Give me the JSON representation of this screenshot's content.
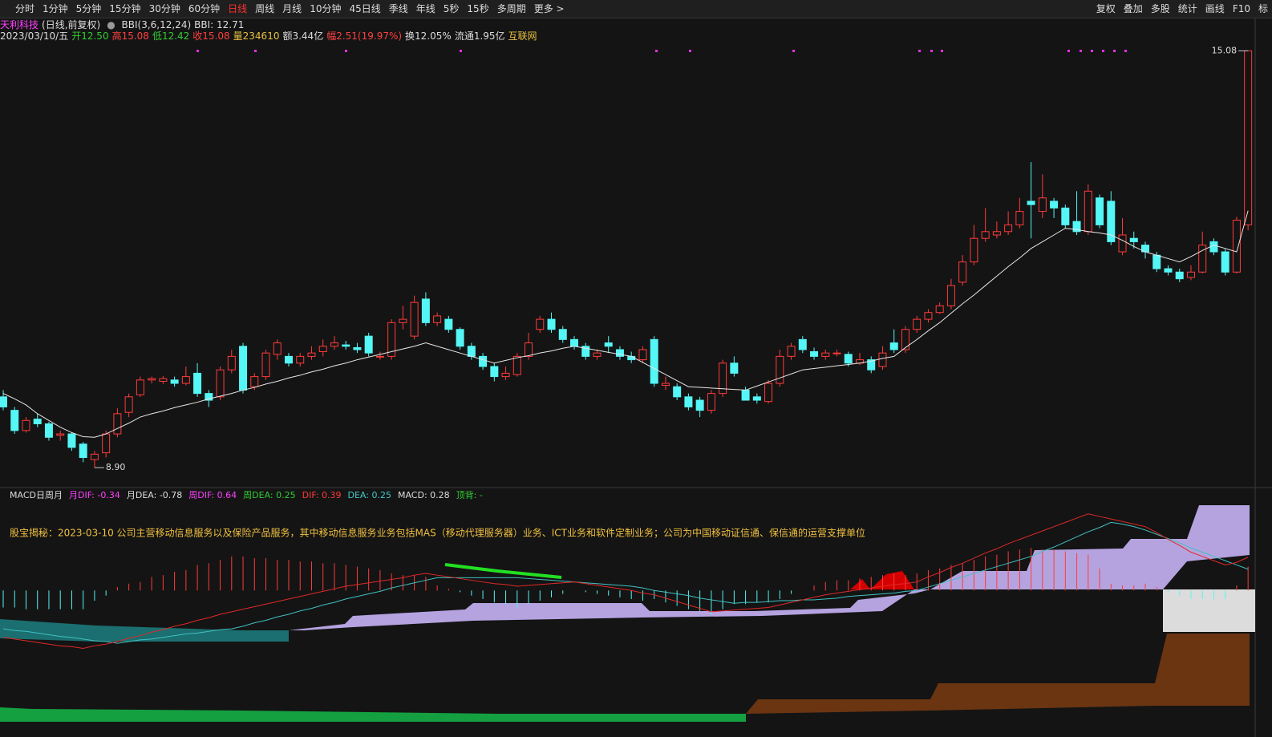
{
  "toolbar": {
    "left": [
      "分时",
      "1分钟",
      "5分钟",
      "15分钟",
      "30分钟",
      "60分钟",
      "日线",
      "周线",
      "月线",
      "10分钟",
      "45日线",
      "季线",
      "年线",
      "5秒",
      "15秒",
      "多周期",
      "更多 >"
    ],
    "active_index": 6,
    "right": [
      "复权",
      "叠加",
      "多股",
      "统计",
      "画线",
      "F10",
      "标"
    ]
  },
  "info": [
    {
      "text": "2023/03/10/五",
      "color": "#dddddd"
    },
    {
      "text": "开12.50",
      "color": "#33cc33"
    },
    {
      "text": "高15.08",
      "color": "#ff4040"
    },
    {
      "text": "低12.42",
      "color": "#33cc33"
    },
    {
      "text": "收15.08",
      "color": "#ff4040"
    },
    {
      "text": "量234610",
      "color": "#e8c040"
    },
    {
      "text": "额3.44亿",
      "color": "#dddddd"
    },
    {
      "text": "幅2.51(19.97%)",
      "color": "#ff4040"
    },
    {
      "text": "换12.05%",
      "color": "#dddddd"
    },
    {
      "text": "流通1.95亿",
      "color": "#dddddd"
    },
    {
      "text": "互联网",
      "color": "#e8c040"
    }
  ],
  "notice": "股宝揭秘：2023-03-10 公司主营移动信息服务以及保险产品服务，其中移动信息服务业务包括MAS（移动代理服务器）业务、ICT业务和软件定制业务；公司为中国移动证信通、保信通的运营支撑单位",
  "chart_data": [
    {
      "type": "candlestick",
      "title": "天利科技",
      "subtitle": "(日线,前复权)",
      "indicator": "BBI(3,6,12,24)",
      "indicator_value": "BBI: 12.71",
      "up_color": "#ff3b3b",
      "down_color": "#54f6f6",
      "bbi_color": "#e6e6e6",
      "ylim": [
        8.64,
        15.18
      ],
      "annotations": [
        {
          "value": 15.08,
          "label": "15.08"
        },
        {
          "value": 8.9,
          "label": "8.90"
        }
      ],
      "open": [
        9.95,
        9.75,
        9.45,
        9.62,
        9.55,
        9.38,
        9.4,
        9.25,
        9.02,
        9.12,
        9.4,
        9.72,
        9.98,
        10.2,
        10.18,
        10.2,
        10.15,
        10.3,
        10.0,
        9.95,
        10.35,
        10.7,
        10.1,
        10.25,
        10.58,
        10.55,
        10.45,
        10.55,
        10.62,
        10.7,
        10.72,
        10.68,
        10.85,
        10.55,
        10.55,
        11.05,
        10.85,
        11.4,
        11.05,
        11.1,
        10.95,
        10.7,
        10.55,
        10.4,
        10.25,
        10.28,
        10.55,
        10.95,
        11.1,
        10.95,
        10.8,
        10.7,
        10.55,
        10.75,
        10.65,
        10.55,
        10.5,
        10.8,
        10.12,
        10.1,
        9.95,
        9.9,
        9.75,
        10.0,
        10.45,
        10.05,
        9.95,
        9.88,
        10.15,
        10.55,
        10.8,
        10.62,
        10.55,
        10.6,
        10.58,
        10.45,
        10.5,
        10.4,
        10.75,
        10.65,
        10.95,
        11.1,
        11.2,
        11.3,
        11.65,
        11.95,
        12.3,
        12.35,
        12.4,
        12.5,
        12.85,
        12.7,
        12.85,
        12.75,
        12.55,
        12.4,
        12.9,
        12.85,
        12.1,
        12.3,
        12.2,
        12.05,
        11.85,
        11.8,
        11.72,
        11.8,
        12.25,
        12.1,
        11.8,
        12.5
      ],
      "high": [
        10.05,
        9.8,
        9.65,
        9.7,
        9.58,
        9.45,
        9.42,
        9.28,
        9.15,
        9.45,
        9.78,
        10.0,
        10.25,
        10.25,
        10.26,
        10.25,
        10.4,
        10.45,
        10.05,
        10.4,
        10.65,
        10.75,
        10.3,
        10.65,
        10.8,
        10.6,
        10.6,
        10.7,
        10.8,
        10.85,
        10.78,
        10.75,
        10.9,
        10.62,
        11.1,
        11.3,
        11.45,
        11.5,
        11.2,
        11.15,
        10.98,
        10.75,
        10.6,
        10.45,
        10.4,
        10.6,
        10.9,
        11.15,
        11.2,
        11.0,
        10.85,
        10.75,
        10.65,
        10.85,
        10.7,
        10.62,
        10.7,
        10.85,
        10.25,
        10.15,
        10.0,
        9.95,
        10.05,
        10.5,
        10.55,
        10.1,
        10.0,
        10.2,
        10.65,
        10.75,
        10.85,
        10.68,
        10.65,
        10.65,
        10.62,
        10.6,
        10.55,
        10.7,
        10.95,
        11.0,
        11.15,
        11.25,
        11.35,
        11.7,
        12.05,
        12.5,
        12.75,
        12.55,
        12.7,
        12.9,
        13.43,
        13.25,
        12.9,
        12.8,
        13.0,
        13.1,
        12.95,
        13.0,
        12.6,
        12.4,
        12.25,
        12.1,
        11.9,
        11.85,
        11.9,
        12.4,
        12.3,
        12.15,
        12.62,
        15.08
      ],
      "low": [
        9.75,
        9.4,
        9.42,
        9.5,
        9.3,
        9.3,
        9.15,
        8.98,
        8.9,
        9.05,
        9.35,
        9.65,
        9.95,
        10.15,
        10.14,
        10.1,
        10.12,
        9.95,
        9.8,
        9.9,
        10.3,
        10.0,
        10.05,
        10.2,
        10.5,
        10.4,
        10.4,
        10.5,
        10.55,
        10.65,
        10.65,
        10.6,
        10.55,
        10.5,
        10.5,
        10.95,
        10.8,
        11.0,
        11.0,
        10.9,
        10.65,
        10.5,
        10.35,
        10.18,
        10.2,
        10.25,
        10.5,
        10.9,
        10.9,
        10.75,
        10.65,
        10.5,
        10.5,
        10.6,
        10.5,
        10.45,
        10.45,
        10.1,
        10.05,
        9.9,
        9.75,
        9.65,
        9.7,
        9.95,
        10.25,
        9.9,
        9.85,
        9.85,
        10.1,
        10.5,
        10.6,
        10.5,
        10.5,
        10.55,
        10.4,
        10.42,
        10.3,
        10.35,
        10.6,
        10.6,
        10.9,
        11.05,
        11.18,
        11.25,
        11.6,
        11.9,
        12.25,
        12.3,
        12.35,
        12.45,
        12.3,
        12.6,
        12.6,
        12.45,
        12.35,
        12.35,
        12.45,
        12.2,
        12.05,
        12.15,
        12.0,
        11.8,
        11.75,
        11.65,
        11.68,
        11.78,
        12.05,
        11.75,
        11.78,
        12.42
      ],
      "close": [
        9.8,
        9.45,
        9.6,
        9.55,
        9.35,
        9.4,
        9.2,
        9.05,
        9.1,
        9.4,
        9.7,
        9.95,
        10.2,
        10.22,
        10.22,
        10.15,
        10.25,
        10.0,
        9.9,
        10.35,
        10.55,
        10.05,
        10.25,
        10.6,
        10.75,
        10.45,
        10.55,
        10.6,
        10.7,
        10.75,
        10.7,
        10.65,
        10.6,
        10.55,
        11.05,
        11.1,
        11.35,
        11.05,
        11.15,
        10.95,
        10.7,
        10.55,
        10.4,
        10.25,
        10.3,
        10.55,
        10.75,
        11.1,
        10.95,
        10.8,
        10.7,
        10.55,
        10.6,
        10.7,
        10.55,
        10.5,
        10.65,
        10.15,
        10.15,
        9.95,
        9.8,
        9.75,
        10.0,
        10.45,
        10.3,
        9.9,
        9.9,
        10.15,
        10.55,
        10.7,
        10.65,
        10.55,
        10.6,
        10.6,
        10.45,
        10.5,
        10.35,
        10.6,
        10.65,
        10.95,
        11.1,
        11.2,
        11.3,
        11.6,
        11.95,
        12.3,
        12.4,
        12.4,
        12.5,
        12.7,
        12.8,
        12.9,
        12.75,
        12.5,
        12.4,
        13.0,
        12.5,
        12.25,
        12.35,
        12.25,
        12.1,
        11.85,
        11.8,
        11.7,
        11.8,
        12.2,
        12.1,
        11.8,
        12.57,
        15.08
      ],
      "bbi": [
        10.0,
        9.92,
        9.83,
        9.7,
        9.6,
        9.5,
        9.42,
        9.36,
        9.35,
        9.4,
        9.48,
        9.56,
        9.65,
        9.7,
        9.74,
        9.79,
        9.83,
        9.87,
        9.92,
        9.96,
        10.0,
        10.05,
        10.09,
        10.14,
        10.18,
        10.23,
        10.27,
        10.32,
        10.36,
        10.41,
        10.45,
        10.5,
        10.54,
        10.58,
        10.62,
        10.66,
        10.7,
        10.75,
        10.7,
        10.65,
        10.6,
        10.55,
        10.5,
        10.45,
        10.49,
        10.53,
        10.56,
        10.6,
        10.63,
        10.67,
        10.7,
        10.67,
        10.64,
        10.61,
        10.58,
        10.55,
        10.46,
        10.37,
        10.28,
        10.19,
        10.1,
        10.09,
        10.08,
        10.07,
        10.06,
        10.05,
        10.11,
        10.17,
        10.23,
        10.29,
        10.35,
        10.37,
        10.39,
        10.41,
        10.43,
        10.45,
        10.48,
        10.52,
        10.55,
        10.68,
        10.8,
        10.93,
        11.05,
        11.19,
        11.33,
        11.46,
        11.6,
        11.74,
        11.88,
        12.01,
        12.15,
        12.25,
        12.35,
        12.45,
        12.43,
        12.4,
        12.38,
        12.35,
        12.27,
        12.18,
        12.1,
        12.05,
        12.0,
        11.95,
        12.03,
        12.12,
        12.2,
        12.15,
        12.1,
        12.71
      ]
    },
    {
      "type": "macd",
      "title": "MACD日周月",
      "legend": [
        {
          "text": "月DIF: -0.34",
          "color": "#ff40ff"
        },
        {
          "text": "月DEA: -0.78",
          "color": "#dddddd"
        },
        {
          "text": "周DIF: 0.64",
          "color": "#ff40ff"
        },
        {
          "text": "周DEA: 0.25",
          "color": "#33cc33"
        },
        {
          "text": "DIF: 0.39",
          "color": "#ff3b3b"
        },
        {
          "text": "DEA: 0.25",
          "color": "#40c8c8"
        },
        {
          "text": "MACD: 0.28",
          "color": "#dddddd"
        },
        {
          "text": "顶背: -",
          "color": "#33cc33"
        }
      ],
      "dif_color": "#e02828",
      "dea_color": "#40c0c0",
      "up_color": "#ff3b3b",
      "down_color": "#54f6f6",
      "ylim": [
        -1.57,
        1.02
      ],
      "dif": [
        -0.55,
        -0.57,
        -0.59,
        -0.61,
        -0.63,
        -0.65,
        -0.66,
        -0.68,
        -0.65,
        -0.63,
        -0.6,
        -0.56,
        -0.53,
        -0.49,
        -0.46,
        -0.42,
        -0.39,
        -0.35,
        -0.32,
        -0.28,
        -0.25,
        -0.22,
        -0.19,
        -0.16,
        -0.13,
        -0.1,
        -0.07,
        -0.04,
        -0.01,
        0.02,
        0.05,
        0.07,
        0.09,
        0.11,
        0.13,
        0.15,
        0.18,
        0.2,
        0.18,
        0.16,
        0.14,
        0.12,
        0.1,
        0.08,
        0.07,
        0.05,
        0.06,
        0.07,
        0.08,
        0.09,
        0.1,
        0.08,
        0.06,
        0.04,
        0.02,
        0.0,
        -0.03,
        -0.05,
        -0.09,
        -0.13,
        -0.17,
        -0.21,
        -0.25,
        -0.24,
        -0.23,
        -0.22,
        -0.21,
        -0.2,
        -0.17,
        -0.14,
        -0.11,
        -0.08,
        -0.05,
        -0.03,
        -0.01,
        0.01,
        0.03,
        0.05,
        0.07,
        0.08,
        0.1,
        0.16,
        0.21,
        0.27,
        0.32,
        0.38,
        0.44,
        0.49,
        0.55,
        0.6,
        0.65,
        0.7,
        0.75,
        0.8,
        0.85,
        0.9,
        0.87,
        0.84,
        0.81,
        0.78,
        0.75,
        0.68,
        0.6,
        0.53,
        0.45,
        0.4,
        0.35,
        0.3,
        0.33,
        0.39
      ],
      "dea": [
        -0.45,
        -0.47,
        -0.48,
        -0.5,
        -0.52,
        -0.54,
        -0.55,
        -0.57,
        -0.59,
        -0.6,
        -0.62,
        -0.6,
        -0.58,
        -0.57,
        -0.55,
        -0.53,
        -0.51,
        -0.5,
        -0.48,
        -0.46,
        -0.45,
        -0.42,
        -0.38,
        -0.35,
        -0.31,
        -0.28,
        -0.24,
        -0.21,
        -0.17,
        -0.14,
        -0.1,
        -0.07,
        -0.04,
        -0.01,
        0.03,
        0.06,
        0.09,
        0.12,
        0.15,
        0.15,
        0.15,
        0.15,
        0.15,
        0.15,
        0.15,
        0.15,
        0.14,
        0.13,
        0.12,
        0.11,
        0.1,
        0.09,
        0.08,
        0.07,
        0.06,
        0.05,
        0.03,
        0.0,
        -0.02,
        -0.04,
        -0.06,
        -0.09,
        -0.11,
        -0.13,
        -0.15,
        -0.14,
        -0.14,
        -0.13,
        -0.12,
        -0.12,
        -0.11,
        -0.11,
        -0.1,
        -0.09,
        -0.07,
        -0.06,
        -0.05,
        -0.04,
        -0.03,
        -0.01,
        0.0,
        0.04,
        0.08,
        0.12,
        0.16,
        0.2,
        0.24,
        0.28,
        0.32,
        0.36,
        0.4,
        0.46,
        0.51,
        0.57,
        0.63,
        0.69,
        0.74,
        0.8,
        0.78,
        0.75,
        0.71,
        0.66,
        0.61,
        0.56,
        0.5,
        0.45,
        0.4,
        0.35,
        0.3,
        0.25
      ],
      "macd": [
        -0.2,
        -0.2,
        -0.22,
        -0.22,
        -0.22,
        -0.22,
        -0.22,
        -0.22,
        -0.12,
        -0.06,
        0.04,
        0.08,
        0.1,
        0.16,
        0.18,
        0.22,
        0.24,
        0.3,
        0.32,
        0.36,
        0.4,
        0.4,
        0.38,
        0.38,
        0.36,
        0.36,
        0.34,
        0.34,
        0.32,
        0.32,
        0.3,
        0.28,
        0.26,
        0.24,
        0.2,
        0.18,
        0.18,
        0.16,
        0.06,
        0.02,
        -0.02,
        -0.06,
        -0.1,
        -0.14,
        -0.16,
        -0.2,
        -0.16,
        -0.12,
        -0.08,
        -0.04,
        0.0,
        -0.02,
        -0.04,
        -0.06,
        -0.08,
        -0.1,
        -0.12,
        -0.1,
        -0.14,
        -0.18,
        -0.22,
        -0.24,
        -0.28,
        -0.22,
        -0.16,
        -0.16,
        -0.14,
        -0.14,
        -0.1,
        -0.04,
        0.0,
        0.06,
        0.1,
        0.12,
        0.12,
        0.14,
        0.16,
        0.18,
        0.2,
        0.18,
        0.2,
        0.24,
        0.26,
        0.3,
        0.32,
        0.36,
        0.4,
        0.42,
        0.46,
        0.48,
        0.5,
        0.48,
        0.48,
        0.46,
        0.44,
        0.42,
        0.26,
        0.08,
        0.06,
        0.06,
        0.08,
        0.04,
        -0.02,
        -0.06,
        -0.1,
        -0.1,
        -0.1,
        -0.1,
        0.06,
        0.28
      ]
    }
  ]
}
